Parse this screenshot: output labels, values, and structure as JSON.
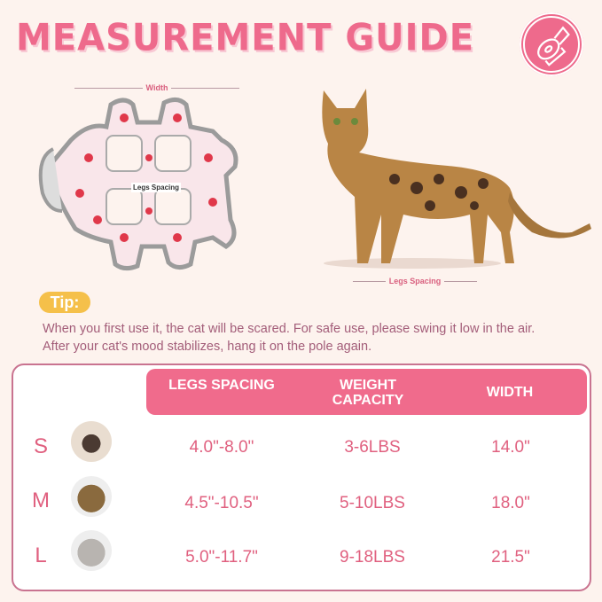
{
  "title": "MEASUREMENT GUIDE",
  "header_icon": "tape-measure-icon",
  "garment": {
    "width_label": "Width",
    "legs_spacing_label": "Legs Spacing"
  },
  "cat_photo": {
    "legs_spacing_label": "Legs Spacing"
  },
  "tip": {
    "badge": "Tip:",
    "text": "When you first use it, the cat will be scared. For safe use, please swing it low in the air. After your cat's mood stabilizes, hang it on the pole again."
  },
  "colors": {
    "accent": "#ee6a8c",
    "tip_badge": "#f5c04a",
    "background": "#fdf3ee"
  },
  "size_table": {
    "headers": [
      "LEGS SPACING",
      "WEIGHT CAPACITY",
      "WIDTH"
    ],
    "rows": [
      {
        "size": "S",
        "legs_spacing": "4.0\"-8.0\"",
        "weight_capacity": "3-6LBS",
        "width": "14.0\""
      },
      {
        "size": "M",
        "legs_spacing": "4.5\"-10.5\"",
        "weight_capacity": "5-10LBS",
        "width": "18.0\""
      },
      {
        "size": "L",
        "legs_spacing": "5.0\"-11.7\"",
        "weight_capacity": "9-18LBS",
        "width": "21.5\""
      }
    ]
  }
}
